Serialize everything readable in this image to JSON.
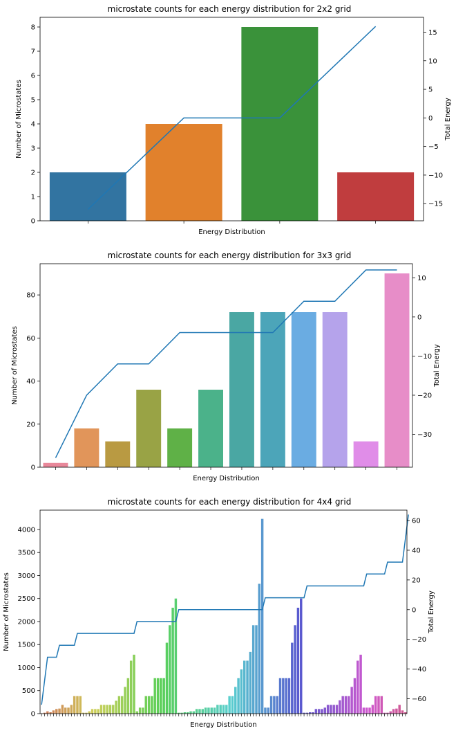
{
  "chart_data": [
    {
      "type": "bar",
      "title": "microstate counts for each energy distribution for 2x2 grid",
      "xlabel": "Energy Distribution",
      "ylabel": "Number of Microstates",
      "y2label": "Total Energy",
      "ylim": [
        0,
        8.4
      ],
      "y2lim": [
        -18,
        17.6
      ],
      "yticks": [
        0,
        1,
        2,
        3,
        4,
        5,
        6,
        7,
        8
      ],
      "y2ticks": [
        -15,
        -10,
        -5,
        0,
        5,
        10,
        15
      ],
      "grid": false,
      "values": [
        2,
        4,
        8,
        2
      ],
      "colors": [
        "#3274a1",
        "#e1812c",
        "#3a923a",
        "#c03d3e"
      ],
      "line": {
        "values": [
          -16,
          0,
          0,
          16
        ],
        "color": "#1f77b4"
      }
    },
    {
      "type": "bar",
      "title": "microstate counts for each energy distribution for 3x3 grid",
      "xlabel": "Energy Distribution",
      "ylabel": "Number of Microstates",
      "y2label": "Total Energy",
      "ylim": [
        0,
        94.5
      ],
      "y2lim": [
        -38.4,
        13.6
      ],
      "yticks": [
        0,
        20,
        40,
        60,
        80
      ],
      "y2ticks": [
        -30,
        -20,
        -10,
        0,
        10
      ],
      "grid": false,
      "values": [
        2,
        18,
        12,
        36,
        18,
        36,
        72,
        72,
        72,
        72,
        12,
        90
      ],
      "colors": [
        "#e8889a",
        "#e1955a",
        "#b99a42",
        "#99a345",
        "#5fb147",
        "#4bb28a",
        "#4aa7a3",
        "#4ca5b9",
        "#6aace2",
        "#b5a3eb",
        "#e08de8",
        "#e78dc8"
      ],
      "line": {
        "values": [
          -36,
          -20,
          -12,
          -12,
          -4,
          -4,
          -4,
          -4,
          4,
          4,
          12,
          12
        ],
        "color": "#1f77b4"
      }
    },
    {
      "type": "bar",
      "title": "microstate counts for each energy distribution for 4x4 grid",
      "xlabel": "Energy Distribution",
      "ylabel": "Number of Microstates",
      "y2label": "Total Energy",
      "ylim": [
        0,
        4420
      ],
      "y2lim": [
        -70,
        67
      ],
      "yticks": [
        0,
        500,
        1000,
        1500,
        2000,
        2500,
        3000,
        3500,
        4000
      ],
      "y2ticks": [
        -60,
        -40,
        -20,
        0,
        20,
        40,
        60
      ],
      "grid": false,
      "values": [
        5,
        20,
        50,
        30,
        70,
        100,
        110,
        190,
        130,
        130,
        190,
        380,
        380,
        380,
        20,
        20,
        50,
        100,
        100,
        100,
        190,
        190,
        190,
        190,
        190,
        280,
        380,
        380,
        580,
        770,
        1150,
        1280,
        50,
        130,
        130,
        380,
        380,
        380,
        770,
        770,
        770,
        770,
        1540,
        1920,
        2300,
        2500,
        20,
        20,
        30,
        30,
        50,
        50,
        100,
        100,
        100,
        130,
        130,
        130,
        130,
        190,
        190,
        190,
        190,
        380,
        380,
        580,
        770,
        960,
        1150,
        1150,
        1340,
        1920,
        1920,
        2820,
        4230,
        130,
        130,
        380,
        380,
        380,
        770,
        770,
        770,
        770,
        1540,
        1920,
        2300,
        2500,
        20,
        20,
        30,
        30,
        100,
        100,
        100,
        130,
        190,
        190,
        190,
        190,
        290,
        380,
        380,
        380,
        580,
        770,
        1150,
        1280,
        130,
        130,
        130,
        190,
        380,
        380,
        380,
        20,
        20,
        50,
        100,
        110,
        190,
        70,
        30
      ],
      "line": {
        "values": [
          -64,
          -48,
          -32,
          -32,
          -32,
          -32,
          -24,
          -24,
          -24,
          -24,
          -24,
          -24,
          -16,
          -16,
          -16,
          -16,
          -16,
          -16,
          -16,
          -16,
          -16,
          -16,
          -16,
          -16,
          -16,
          -16,
          -16,
          -16,
          -16,
          -16,
          -16,
          -16,
          -8,
          -8,
          -8,
          -8,
          -8,
          -8,
          -8,
          -8,
          -8,
          -8,
          -8,
          -8,
          -8,
          -8,
          0,
          0,
          0,
          0,
          0,
          0,
          0,
          0,
          0,
          0,
          0,
          0,
          0,
          0,
          0,
          0,
          0,
          0,
          0,
          0,
          0,
          0,
          0,
          0,
          0,
          0,
          0,
          0,
          0,
          8,
          8,
          8,
          8,
          8,
          8,
          8,
          8,
          8,
          8,
          8,
          8,
          8,
          8,
          16,
          16,
          16,
          16,
          16,
          16,
          16,
          16,
          16,
          16,
          16,
          16,
          16,
          16,
          16,
          16,
          16,
          16,
          16,
          16,
          24,
          24,
          24,
          24,
          24,
          24,
          24,
          32,
          32,
          32,
          32,
          32,
          32,
          48,
          64
        ],
        "color": "#1f77b4"
      }
    }
  ]
}
